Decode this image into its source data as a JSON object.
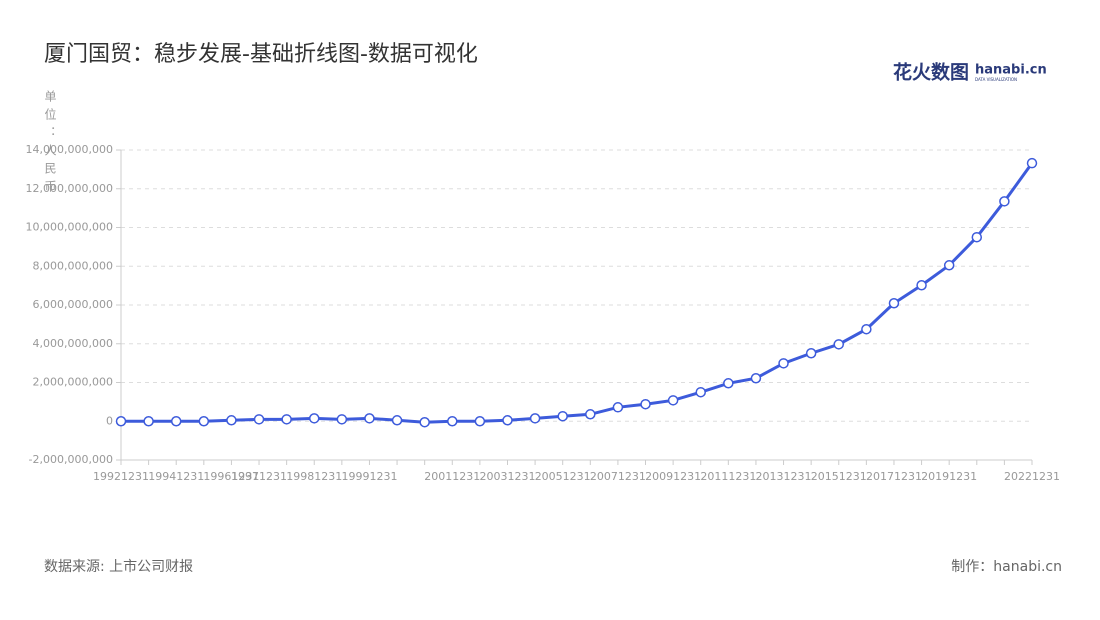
{
  "chart_data": {
    "type": "line",
    "title": "厦门国贸：稳步发展-基础折线图-数据可视化",
    "y_label": "单位：人民币",
    "source": "数据来源: 上市公司财报",
    "credit": "制作：hanabi.cn",
    "logo": {
      "name": "花火数图",
      "site": "hanabi.cn",
      "tagline": "DATA VISUALIZATION"
    },
    "categories": [
      "19921231",
      null,
      "19941231",
      null,
      "19961231",
      "19971231",
      null,
      "19981231",
      null,
      "19991231",
      null,
      null,
      "20011231",
      null,
      "20031231",
      null,
      "20051231",
      null,
      "20071231",
      null,
      "20091231",
      null,
      "20111231",
      null,
      "20131231",
      null,
      "20151231",
      null,
      "20171231",
      null,
      "20191231",
      null,
      null,
      "20221231"
    ],
    "series": [
      {
        "name": "厦门国贸",
        "color": "#3d5bdb",
        "values": [
          0,
          0,
          0,
          0,
          50000000,
          100000000,
          100000000,
          150000000,
          100000000,
          150000000,
          50000000,
          -50000000,
          0,
          0,
          50000000,
          150000000,
          260000000,
          360000000,
          720000000,
          880000000,
          1080000000,
          1500000000,
          1960000000,
          2220000000,
          2990000000,
          3510000000,
          3970000000,
          4750000000,
          6090000000,
          7020000000,
          8050000000,
          9500000000,
          11350000000,
          13320000000
        ]
      }
    ],
    "ylim": [
      -2000000000,
      14000000000
    ],
    "yticks": [
      {
        "value": -2000000000,
        "label": "-2,000,000,000"
      },
      0,
      {
        "value": 2000000000,
        "label": "2,000,000,000"
      },
      {
        "value": 4000000000,
        "label": "4,000,000,000"
      },
      {
        "value": 6000000000,
        "label": "6,000,000,000"
      },
      {
        "value": 8000000000,
        "label": "8,000,000,000"
      },
      {
        "value": 10000000000,
        "label": "10,000,000,000"
      },
      {
        "value": 12000000000,
        "label": "12,000,000,000"
      },
      {
        "value": 14000000000,
        "label": "14,000,000,000"
      }
    ],
    "grid": true
  }
}
